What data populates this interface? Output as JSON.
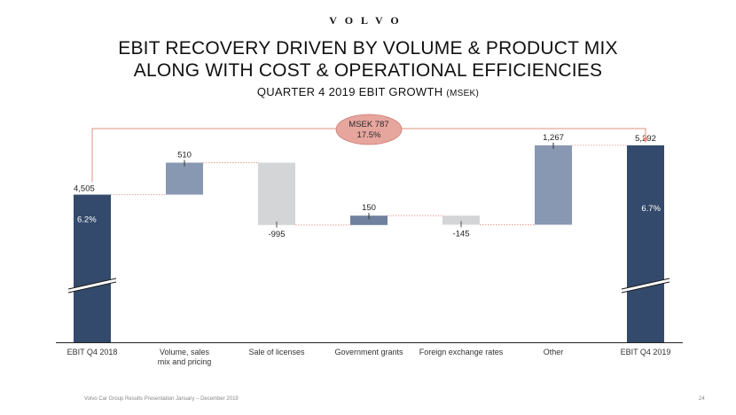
{
  "brand": {
    "logo_text": "VOLVO"
  },
  "header": {
    "title_line1": "EBIT RECOVERY DRIVEN BY VOLUME & PRODUCT MIX",
    "title_line2": "ALONG WITH COST & OPERATIONAL EFFICIENCIES",
    "subtitle": "QUARTER 4 2019 EBIT GROWTH",
    "subtitle_unit": "(MSEK)"
  },
  "footer": {
    "text": "Volvo Car Group Results Presentation January – December 2019",
    "page": "24"
  },
  "colors": {
    "total_bar": "#344a6c",
    "positive_bar": "#8898b2",
    "negative_bar": "#d4d5d7",
    "small_positive_bar": "#6f819f",
    "connector": "#e29080",
    "bubble_fill": "#e6a59d",
    "bubble_stroke": "#cc7f75"
  },
  "chart_data": {
    "type": "bar",
    "variant": "waterfall",
    "title": "QUARTER 4 2019 EBIT GROWTH (MSEK)",
    "categories": [
      "EBIT Q4 2018",
      "Volume, sales mix and pricing",
      "Sale of licenses",
      "Government grants",
      "Foreign exchange rates",
      "Other",
      "EBIT Q4 2019"
    ],
    "category_lines": [
      [
        "EBIT Q4 2018"
      ],
      [
        "Volume, sales",
        "mix and pricing"
      ],
      [
        "Sale of licenses"
      ],
      [
        "Government grants"
      ],
      [
        "Foreign exchange rates"
      ],
      [
        "Other"
      ],
      [
        "EBIT Q4 2019"
      ]
    ],
    "values": [
      4505,
      510,
      -995,
      150,
      -145,
      1267,
      5292
    ],
    "labels": [
      "4,505",
      "510",
      "-995",
      "150",
      "-145",
      "1,267",
      "5,292"
    ],
    "kinds": [
      "total",
      "delta",
      "delta",
      "delta",
      "delta",
      "delta",
      "total"
    ],
    "margins": [
      "6.2%",
      "",
      "",
      "",
      "",
      "",
      "6.7%"
    ],
    "growth_annotation": {
      "line1": "MSEK 787",
      "line2": "17.5%"
    },
    "axis_break": true,
    "grid": false,
    "legend": "none"
  }
}
